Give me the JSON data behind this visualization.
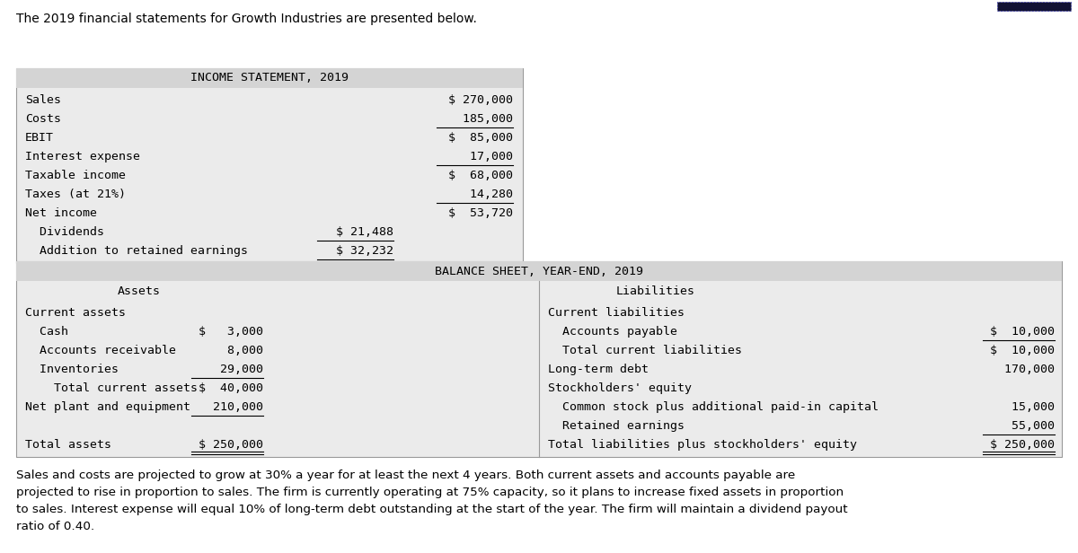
{
  "intro_text": "The 2019 financial statements for Growth Industries are presented below.",
  "footer_text": "Sales and costs are projected to grow at 30% a year for at least the next 4 years. Both current assets and accounts payable are\nprojected to rise in proportion to sales. The firm is currently operating at 75% capacity, so it plans to increase fixed assets in proportion\nto sales. Interest expense will equal 10% of long-term debt outstanding at the start of the year. The firm will maintain a dividend payout\nratio of 0.40.",
  "income_title": "INCOME STATEMENT, 2019",
  "income_rows": [
    {
      "label": "Sales",
      "col1": "",
      "col2": "$ 270,000",
      "ul2": false,
      "ul1": false
    },
    {
      "label": "Costs",
      "col1": "",
      "col2": "  185,000",
      "ul2": true,
      "ul1": false
    },
    {
      "label": "EBIT",
      "col1": "",
      "col2": "$  85,000",
      "ul2": false,
      "ul1": false
    },
    {
      "label": "Interest expense",
      "col1": "",
      "col2": "   17,000",
      "ul2": true,
      "ul1": false
    },
    {
      "label": "Taxable income",
      "col1": "",
      "col2": "$  68,000",
      "ul2": false,
      "ul1": false
    },
    {
      "label": "Taxes (at 21%)",
      "col1": "",
      "col2": "   14,280",
      "ul2": true,
      "ul1": false
    },
    {
      "label": "Net income",
      "col1": "",
      "col2": "$  53,720",
      "ul2": false,
      "ul1": false
    },
    {
      "label": "  Dividends",
      "col1": "$ 21,488",
      "col2": "",
      "ul2": false,
      "ul1": true
    },
    {
      "label": "  Addition to retained earnings",
      "col1": "$ 32,232",
      "col2": "",
      "ul2": false,
      "ul1": true
    }
  ],
  "balance_title": "BALANCE SHEET, YEAR-END, 2019",
  "assets_header": "Assets",
  "liabilities_header": "Liabilities",
  "balance_rows": [
    {
      "ll": "Current assets",
      "lc": "",
      "rl": "Current liabilities",
      "rc": "",
      "ul_lc": false,
      "ul_rc": false,
      "dbl_lc": false,
      "dbl_rc": false
    },
    {
      "ll": "  Cash",
      "lc": "$   3,000",
      "rl": "  Accounts payable",
      "rc": "$  10,000",
      "ul_lc": false,
      "ul_rc": true,
      "dbl_lc": false,
      "dbl_rc": false
    },
    {
      "ll": "  Accounts receivable",
      "lc": "    8,000",
      "rl": "  Total current liabilities",
      "rc": "$  10,000",
      "ul_lc": false,
      "ul_rc": false,
      "dbl_lc": false,
      "dbl_rc": false
    },
    {
      "ll": "  Inventories",
      "lc": "   29,000",
      "rl": "Long-term debt",
      "rc": "   170,000",
      "ul_lc": true,
      "ul_rc": false,
      "dbl_lc": false,
      "dbl_rc": false
    },
    {
      "ll": "    Total current assets",
      "lc": "$  40,000",
      "rl": "Stockholders' equity",
      "rc": "",
      "ul_lc": false,
      "ul_rc": false,
      "dbl_lc": false,
      "dbl_rc": false
    },
    {
      "ll": "Net plant and equipment",
      "lc": "   210,000",
      "rl": "  Common stock plus additional paid-in capital",
      "rc": "    15,000",
      "ul_lc": true,
      "ul_rc": false,
      "dbl_lc": false,
      "dbl_rc": false
    },
    {
      "ll": "",
      "lc": "",
      "rl": "  Retained earnings",
      "rc": "    55,000",
      "ul_lc": false,
      "ul_rc": true,
      "dbl_lc": false,
      "dbl_rc": false
    },
    {
      "ll": "Total assets",
      "lc": "$ 250,000",
      "rl": "Total liabilities plus stockholders' equity",
      "rc": "$ 250,000",
      "ul_lc": false,
      "ul_rc": false,
      "dbl_lc": true,
      "dbl_rc": true
    }
  ],
  "bg_color": "#ffffff",
  "header_bg": "#d4d4d4",
  "table_bg": "#ebebeb",
  "font_size": 9.5
}
